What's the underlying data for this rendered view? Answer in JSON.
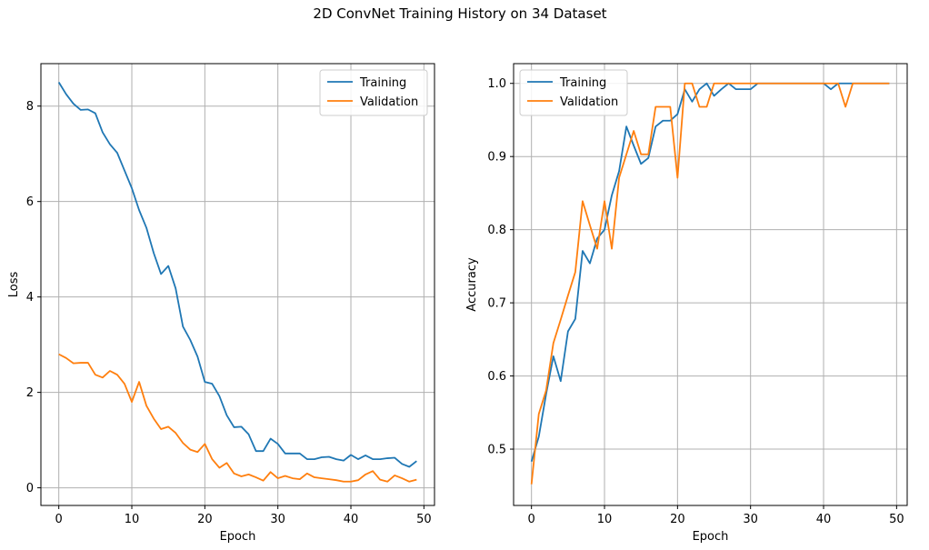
{
  "figure": {
    "title": "2D ConvNet Training History on 34 Dataset"
  },
  "colors": {
    "training": "#1f77b4",
    "validation": "#ff7f0e",
    "grid": "#b0b0b0",
    "axes": "#000000"
  },
  "chart_data": [
    {
      "type": "line",
      "title": "",
      "xlabel": "Epoch",
      "ylabel": "Loss",
      "xlim": [
        -2.45,
        51.45
      ],
      "ylim": [
        -0.37,
        8.89
      ],
      "xticks": [
        0,
        10,
        20,
        30,
        40,
        50
      ],
      "yticks": [
        0,
        2,
        4,
        6,
        8
      ],
      "ytick_labels": [
        "0",
        "2",
        "4",
        "6",
        "8"
      ],
      "grid": true,
      "legend": "upper right",
      "x": [
        0,
        1,
        2,
        3,
        4,
        5,
        6,
        7,
        8,
        9,
        10,
        11,
        12,
        13,
        14,
        15,
        16,
        17,
        18,
        19,
        20,
        21,
        22,
        23,
        24,
        25,
        26,
        27,
        28,
        29,
        30,
        31,
        32,
        33,
        34,
        35,
        36,
        37,
        38,
        39,
        40,
        41,
        42,
        43,
        44,
        45,
        46,
        47,
        48,
        49
      ],
      "series": [
        {
          "name": "Training",
          "values": [
            8.5,
            8.25,
            8.05,
            7.92,
            7.93,
            7.85,
            7.45,
            7.2,
            7.02,
            6.65,
            6.28,
            5.82,
            5.45,
            4.92,
            4.48,
            4.65,
            4.18,
            3.38,
            3.1,
            2.75,
            2.22,
            2.18,
            1.92,
            1.52,
            1.27,
            1.28,
            1.12,
            0.77,
            0.77,
            1.03,
            0.92,
            0.72,
            0.72,
            0.72,
            0.6,
            0.6,
            0.64,
            0.65,
            0.6,
            0.57,
            0.69,
            0.6,
            0.68,
            0.6,
            0.6,
            0.62,
            0.63,
            0.5,
            0.44,
            0.56
          ]
        },
        {
          "name": "Validation",
          "values": [
            2.8,
            2.72,
            2.61,
            2.62,
            2.62,
            2.37,
            2.31,
            2.45,
            2.37,
            2.18,
            1.8,
            2.22,
            1.72,
            1.45,
            1.23,
            1.28,
            1.15,
            0.94,
            0.8,
            0.75,
            0.92,
            0.6,
            0.42,
            0.52,
            0.3,
            0.24,
            0.28,
            0.22,
            0.15,
            0.33,
            0.2,
            0.25,
            0.2,
            0.18,
            0.3,
            0.22,
            0.2,
            0.18,
            0.16,
            0.13,
            0.13,
            0.16,
            0.28,
            0.35,
            0.17,
            0.13,
            0.26,
            0.2,
            0.13,
            0.17
          ]
        }
      ]
    },
    {
      "type": "line",
      "title": "",
      "xlabel": "Epoch",
      "ylabel": "Accuracy",
      "xlim": [
        -2.45,
        51.45
      ],
      "ylim": [
        0.423,
        1.027
      ],
      "xticks": [
        0,
        10,
        20,
        30,
        40,
        50
      ],
      "yticks": [
        0.5,
        0.6,
        0.7,
        0.8,
        0.9,
        1.0
      ],
      "ytick_labels": [
        "0.5",
        "0.6",
        "0.7",
        "0.8",
        "0.9",
        "1.0"
      ],
      "grid": true,
      "legend": "upper left",
      "x": [
        0,
        1,
        2,
        3,
        4,
        5,
        6,
        7,
        8,
        9,
        10,
        11,
        12,
        13,
        14,
        15,
        16,
        17,
        18,
        19,
        20,
        21,
        22,
        23,
        24,
        25,
        26,
        27,
        28,
        29,
        30,
        31,
        32,
        33,
        34,
        35,
        36,
        37,
        38,
        39,
        40,
        41,
        42,
        43,
        44,
        45,
        46,
        47,
        48,
        49
      ],
      "series": [
        {
          "name": "Training",
          "values": [
            0.483,
            0.517,
            0.575,
            0.627,
            0.593,
            0.661,
            0.678,
            0.771,
            0.754,
            0.788,
            0.8,
            0.847,
            0.88,
            0.941,
            0.915,
            0.89,
            0.898,
            0.941,
            0.949,
            0.949,
            0.958,
            0.992,
            0.975,
            0.992,
            1.0,
            0.983,
            0.992,
            1.0,
            0.992,
            0.992,
            0.992,
            1.0,
            1.0,
            1.0,
            1.0,
            1.0,
            1.0,
            1.0,
            1.0,
            1.0,
            1.0,
            0.992,
            1.0,
            1.0,
            1.0,
            1.0,
            1.0,
            1.0,
            1.0,
            1.0
          ]
        },
        {
          "name": "Validation",
          "values": [
            0.452,
            0.548,
            0.58,
            0.645,
            0.677,
            0.71,
            0.742,
            0.839,
            0.806,
            0.774,
            0.839,
            0.774,
            0.871,
            0.903,
            0.935,
            0.903,
            0.903,
            0.968,
            0.968,
            0.968,
            0.871,
            1.0,
            1.0,
            0.968,
            0.968,
            1.0,
            1.0,
            1.0,
            1.0,
            1.0,
            1.0,
            1.0,
            1.0,
            1.0,
            1.0,
            1.0,
            1.0,
            1.0,
            1.0,
            1.0,
            1.0,
            1.0,
            1.0,
            0.968,
            1.0,
            1.0,
            1.0,
            1.0,
            1.0,
            1.0
          ]
        }
      ]
    }
  ]
}
